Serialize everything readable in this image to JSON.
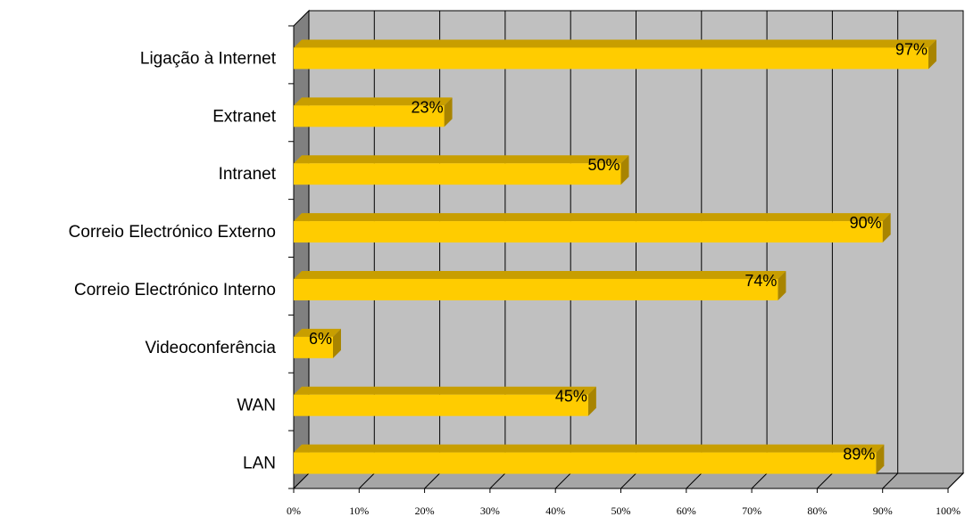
{
  "chart_data": {
    "type": "bar",
    "orientation": "horizontal",
    "three_d": true,
    "categories": [
      "Ligação à Internet",
      "Extranet",
      "Intranet",
      "Correio Electrónico Externo",
      "Correio Electrónico Interno",
      "Videoconferência",
      "WAN",
      "LAN"
    ],
    "values": [
      97,
      23,
      50,
      90,
      74,
      6,
      45,
      89
    ],
    "data_labels": [
      "97%",
      "23%",
      "50%",
      "90%",
      "74%",
      "6%",
      "45%",
      "89%"
    ],
    "x_ticks": [
      "0%",
      "10%",
      "20%",
      "30%",
      "40%",
      "50%",
      "60%",
      "70%",
      "80%",
      "90%",
      "100%"
    ],
    "xlim": [
      0,
      100
    ],
    "grid": true,
    "legend": "none",
    "title": "",
    "xlabel": "",
    "ylabel": "",
    "colors": {
      "bar_front": "#FFCC00",
      "bar_top": "#C89E00",
      "bar_side": "#A88400",
      "plot_back": "#C0C0C0",
      "plot_floor": "#A6A6A6",
      "plot_side": "#808080",
      "gridline": "#000000"
    }
  }
}
